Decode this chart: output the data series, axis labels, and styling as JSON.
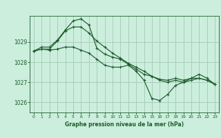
{
  "bg_color": "#cceedd",
  "grid_color": "#aaccbb",
  "line_color": "#1a5c2a",
  "xlabel": "Graphe pression niveau de la mer (hPa)",
  "xlabel_color": "#1a5c2a",
  "tick_color": "#1a5c2a",
  "ylim": [
    1025.5,
    1030.3
  ],
  "xlim": [
    -0.5,
    23.5
  ],
  "yticks": [
    1026,
    1027,
    1028,
    1029
  ],
  "xticks": [
    0,
    1,
    2,
    3,
    4,
    5,
    6,
    7,
    8,
    9,
    10,
    11,
    12,
    13,
    14,
    15,
    16,
    17,
    18,
    19,
    20,
    21,
    22,
    23
  ],
  "series1": [
    1028.55,
    1028.65,
    1028.65,
    1029.05,
    1029.55,
    1029.75,
    1029.75,
    1029.45,
    1029.05,
    1028.75,
    1028.45,
    1028.2,
    1027.95,
    1027.75,
    1027.55,
    1027.3,
    1027.1,
    1027.0,
    1027.1,
    1027.0,
    1027.1,
    1027.2,
    1027.1,
    1026.9
  ],
  "series2": [
    1028.55,
    1028.75,
    1028.75,
    1029.1,
    1029.6,
    1030.05,
    1030.15,
    1029.85,
    1028.7,
    1028.4,
    1028.25,
    1028.15,
    1027.9,
    1027.65,
    1027.4,
    1027.3,
    1027.15,
    1027.1,
    1027.2,
    1027.1,
    1027.2,
    1027.2,
    1027.1,
    1026.9
  ],
  "series3": [
    1028.55,
    1028.65,
    1028.6,
    1028.65,
    1028.75,
    1028.75,
    1028.6,
    1028.45,
    1028.15,
    1027.85,
    1027.75,
    1027.75,
    1027.85,
    1027.55,
    1027.1,
    1026.2,
    1026.1,
    1026.4,
    1026.85,
    1027.0,
    1027.2,
    1027.4,
    1027.2,
    1026.9
  ]
}
